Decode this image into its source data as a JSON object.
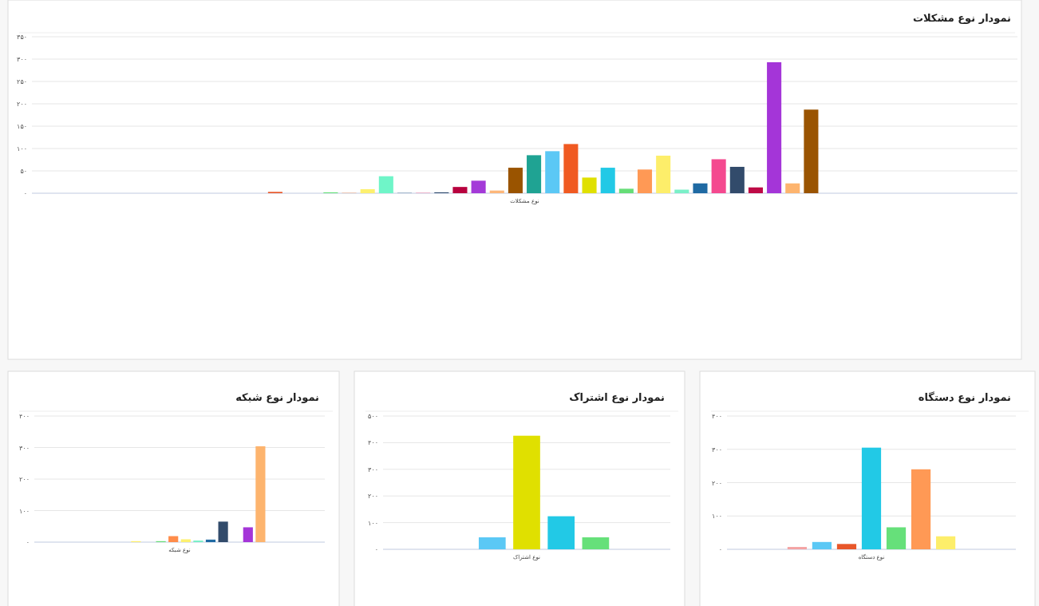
{
  "chart_data": [
    {
      "type": "bar",
      "title": "نمودار نوع مشکلات",
      "categories": [
        "نوع مشکلات"
      ],
      "series": [
        {
          "color": "#7cb5ec",
          "values": [
            0
          ]
        },
        {
          "color": "#434348",
          "values": [
            0
          ]
        },
        {
          "color": "#e8572a",
          "values": [
            3
          ]
        },
        {
          "color": "#90ed7d",
          "values": [
            0
          ]
        },
        {
          "color": "#f7a35c",
          "values": [
            0
          ]
        },
        {
          "color": "#66e07a",
          "values": [
            2
          ]
        },
        {
          "color": "#f7b08a",
          "values": [
            1
          ]
        },
        {
          "color": "#fdf06f",
          "values": [
            9
          ]
        },
        {
          "color": "#6ff5c8",
          "values": [
            38
          ]
        },
        {
          "color": "#7a9bb5",
          "values": [
            1
          ]
        },
        {
          "color": "#f48fb1",
          "values": [
            1
          ]
        },
        {
          "color": "#2f4b6e",
          "values": [
            2
          ]
        },
        {
          "color": "#b8003e",
          "values": [
            14
          ]
        },
        {
          "color": "#a43ad8",
          "values": [
            28
          ]
        },
        {
          "color": "#fdb77a",
          "values": [
            6
          ]
        },
        {
          "color": "#9a5400",
          "values": [
            57
          ]
        },
        {
          "color": "#1fa393",
          "values": [
            85
          ]
        },
        {
          "color": "#5bc8f5",
          "values": [
            94
          ]
        },
        {
          "color": "#f05a22",
          "values": [
            110
          ]
        },
        {
          "color": "#e0e000",
          "values": [
            35
          ]
        },
        {
          "color": "#22c9e6",
          "values": [
            57
          ]
        },
        {
          "color": "#66dd77",
          "values": [
            10
          ]
        },
        {
          "color": "#ff9955",
          "values": [
            53
          ]
        },
        {
          "color": "#fdee6a",
          "values": [
            84
          ]
        },
        {
          "color": "#7af0c8",
          "values": [
            8
          ]
        },
        {
          "color": "#1f6aa3",
          "values": [
            22
          ]
        },
        {
          "color": "#f4498f",
          "values": [
            76
          ]
        },
        {
          "color": "#324b6b",
          "values": [
            59
          ]
        },
        {
          "color": "#be0a46",
          "values": [
            13
          ]
        },
        {
          "color": "#a435d8",
          "values": [
            293
          ]
        },
        {
          "color": "#fdb46e",
          "values": [
            22
          ]
        },
        {
          "color": "#9a5401",
          "values": [
            187
          ]
        }
      ],
      "ylim": [
        0,
        350
      ],
      "yticks": [
        {
          "value": 0,
          "label": "۰"
        },
        {
          "value": 50,
          "label": "۵۰"
        },
        {
          "value": 100,
          "label": "۱۰۰"
        },
        {
          "value": 150,
          "label": "۱۵۰"
        },
        {
          "value": 200,
          "label": "۲۰۰"
        },
        {
          "value": 250,
          "label": "۲۵۰"
        },
        {
          "value": 300,
          "label": "۳۰۰"
        },
        {
          "value": 350,
          "label": "۳۵۰"
        }
      ],
      "grid": "y"
    },
    {
      "type": "bar",
      "title": "نمودار نوع شبکه",
      "categories": [
        "نوع شبکه"
      ],
      "series": [
        {
          "color": "#7cb5ec",
          "values": [
            0
          ]
        },
        {
          "color": "#434348",
          "values": [
            0
          ]
        },
        {
          "color": "#90ed7d",
          "values": [
            0
          ]
        },
        {
          "color": "#fdee6a",
          "values": [
            3
          ]
        },
        {
          "color": "#f7a35c",
          "values": [
            0
          ]
        },
        {
          "color": "#66dd77",
          "values": [
            3
          ]
        },
        {
          "color": "#ff8c4a",
          "values": [
            19
          ]
        },
        {
          "color": "#fdf06f",
          "values": [
            9
          ]
        },
        {
          "color": "#7af0c8",
          "values": [
            5
          ]
        },
        {
          "color": "#1f6aa3",
          "values": [
            8
          ]
        },
        {
          "color": "#324b6b",
          "values": [
            65
          ]
        },
        {
          "color": "#f4498f",
          "values": [
            0
          ]
        },
        {
          "color": "#a435d8",
          "values": [
            47
          ]
        },
        {
          "color": "#fdb46e",
          "values": [
            304
          ]
        }
      ],
      "ylim": [
        0,
        400
      ],
      "yticks": [
        {
          "value": 0,
          "label": "۰"
        },
        {
          "value": 100,
          "label": "۱۰۰"
        },
        {
          "value": 200,
          "label": "۲۰۰"
        },
        {
          "value": 300,
          "label": "۳۰۰"
        },
        {
          "value": 400,
          "label": "۴۰۰"
        }
      ],
      "grid": "y"
    },
    {
      "type": "bar",
      "title": "نمودار نوع اشتراک",
      "categories": [
        "نوع اشتراک"
      ],
      "series": [
        {
          "color": "#7cb5ec",
          "values": [
            0
          ]
        },
        {
          "color": "#5bc8f5",
          "values": [
            45
          ]
        },
        {
          "color": "#e0e000",
          "values": [
            426
          ]
        },
        {
          "color": "#22c9e6",
          "values": [
            124
          ]
        },
        {
          "color": "#66e07a",
          "values": [
            45
          ]
        }
      ],
      "ylim": [
        0,
        500
      ],
      "yticks": [
        {
          "value": 0,
          "label": "۰"
        },
        {
          "value": 100,
          "label": "۱۰۰"
        },
        {
          "value": 200,
          "label": "۲۰۰"
        },
        {
          "value": 300,
          "label": "۳۰۰"
        },
        {
          "value": 400,
          "label": "۴۰۰"
        },
        {
          "value": 500,
          "label": "۵۰۰"
        }
      ],
      "grid": "y"
    },
    {
      "type": "bar",
      "title": "نمودار نوع دستگاه",
      "categories": [
        "نوع دستگاه"
      ],
      "series": [
        {
          "color": "#f4a3a3",
          "values": [
            7
          ]
        },
        {
          "color": "#5bc8f5",
          "values": [
            22
          ]
        },
        {
          "color": "#e8572a",
          "values": [
            16
          ]
        },
        {
          "color": "#22c9e6",
          "values": [
            305
          ]
        },
        {
          "color": "#66e07a",
          "values": [
            66
          ]
        },
        {
          "color": "#ff9955",
          "values": [
            240
          ]
        },
        {
          "color": "#fdee6a",
          "values": [
            39
          ]
        }
      ],
      "ylim": [
        0,
        400
      ],
      "yticks": [
        {
          "value": 0,
          "label": "۰"
        },
        {
          "value": 100,
          "label": "۱۰۰"
        },
        {
          "value": 200,
          "label": "۲۰۰"
        },
        {
          "value": 300,
          "label": "۳۰۰"
        },
        {
          "value": 400,
          "label": "۴۰۰"
        }
      ],
      "grid": "y"
    }
  ]
}
